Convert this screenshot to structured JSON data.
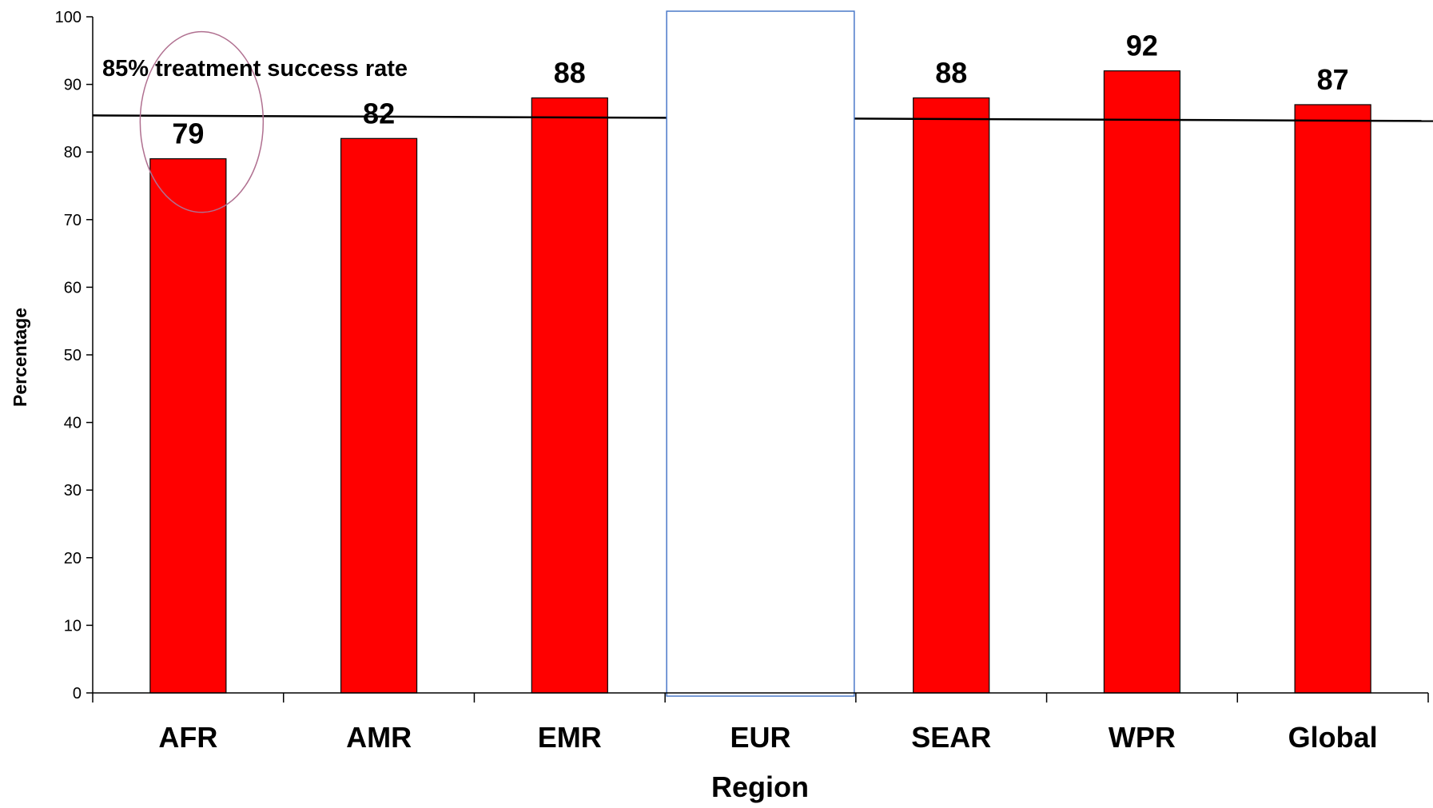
{
  "chart_data": {
    "type": "bar",
    "categories": [
      "AFR",
      "AMR",
      "EMR",
      "EUR",
      "SEAR",
      "WPR",
      "Global"
    ],
    "values": [
      79,
      82,
      88,
      null,
      88,
      92,
      87
    ],
    "data_labels": [
      "79",
      "82",
      "88",
      "",
      "88",
      "92",
      "87"
    ],
    "title": "",
    "xlabel": "Region",
    "ylabel": "Percentage",
    "ylim": [
      0,
      100
    ],
    "yticks": [
      0,
      10,
      20,
      30,
      40,
      50,
      60,
      70,
      80,
      90,
      100
    ],
    "bar_color": "#ff0000",
    "reference_line": {
      "value": 85,
      "label": "85% treatment success rate"
    },
    "highlighted_category": "AFR",
    "highlight_color": "#b07090",
    "blank_box_category": "EUR",
    "blank_box_border_color": "#4a78c8",
    "grid": false
  }
}
